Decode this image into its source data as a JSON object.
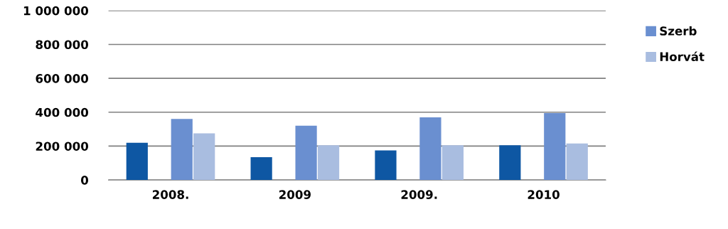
{
  "chart_data": {
    "type": "bar",
    "categories": [
      "2008.",
      "2009",
      "2009.",
      "2010"
    ],
    "series": [
      {
        "color": "#0e57a3",
        "values": [
          220000,
          135000,
          175000,
          205000
        ]
      },
      {
        "color": "#1267c0",
        "values": [
          null,
          null,
          null,
          null
        ]
      },
      {
        "name": "Szerb",
        "color": "#6a8fd0",
        "values": [
          360000,
          320000,
          370000,
          395000
        ]
      },
      {
        "name": "Horvát",
        "color": "#a9bde0",
        "values": [
          275000,
          205000,
          205000,
          215000
        ]
      }
    ],
    "ylim": [
      0,
      1000000
    ],
    "yticks": [
      0,
      {
        "value": 200000,
        "label": "200 000"
      },
      {
        "value": 400000,
        "label": "400 000"
      },
      {
        "value": 600000,
        "label": "600 000"
      },
      {
        "value": 800000,
        "label": "800 000"
      },
      {
        "value": 1000000,
        "label": "1 000 000"
      }
    ],
    "grid": "y",
    "legend": "top right"
  }
}
